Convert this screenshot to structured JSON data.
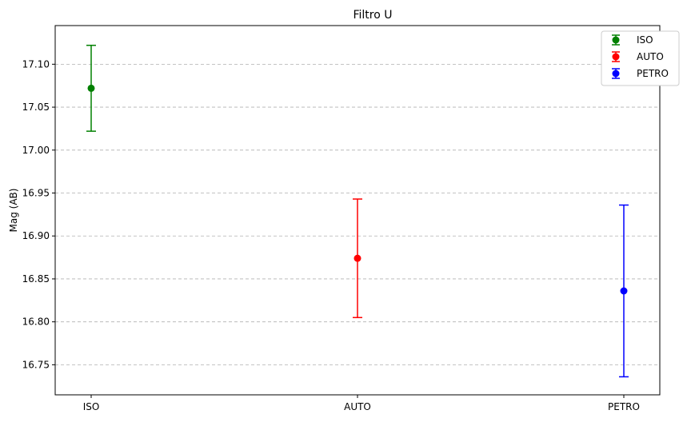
{
  "chart_data": {
    "type": "scatter",
    "title": "Filtro U",
    "xlabel": "",
    "ylabel": "Mag (AB)",
    "categories": [
      "ISO",
      "AUTO",
      "PETRO"
    ],
    "ylim": [
      16.715,
      17.145
    ],
    "yticks": [
      "16.75",
      "16.80",
      "16.85",
      "16.90",
      "16.95",
      "17.00",
      "17.05",
      "17.10"
    ],
    "grid": "y-dashed",
    "legend_position": "top-right",
    "series": [
      {
        "name": "ISO",
        "value": 17.072,
        "error": 0.05,
        "color": "#008000"
      },
      {
        "name": "AUTO",
        "value": 16.874,
        "error": 0.069,
        "color": "#ff0000"
      },
      {
        "name": "PETRO",
        "value": 16.836,
        "error": 0.1,
        "color": "#0000ff"
      }
    ]
  }
}
